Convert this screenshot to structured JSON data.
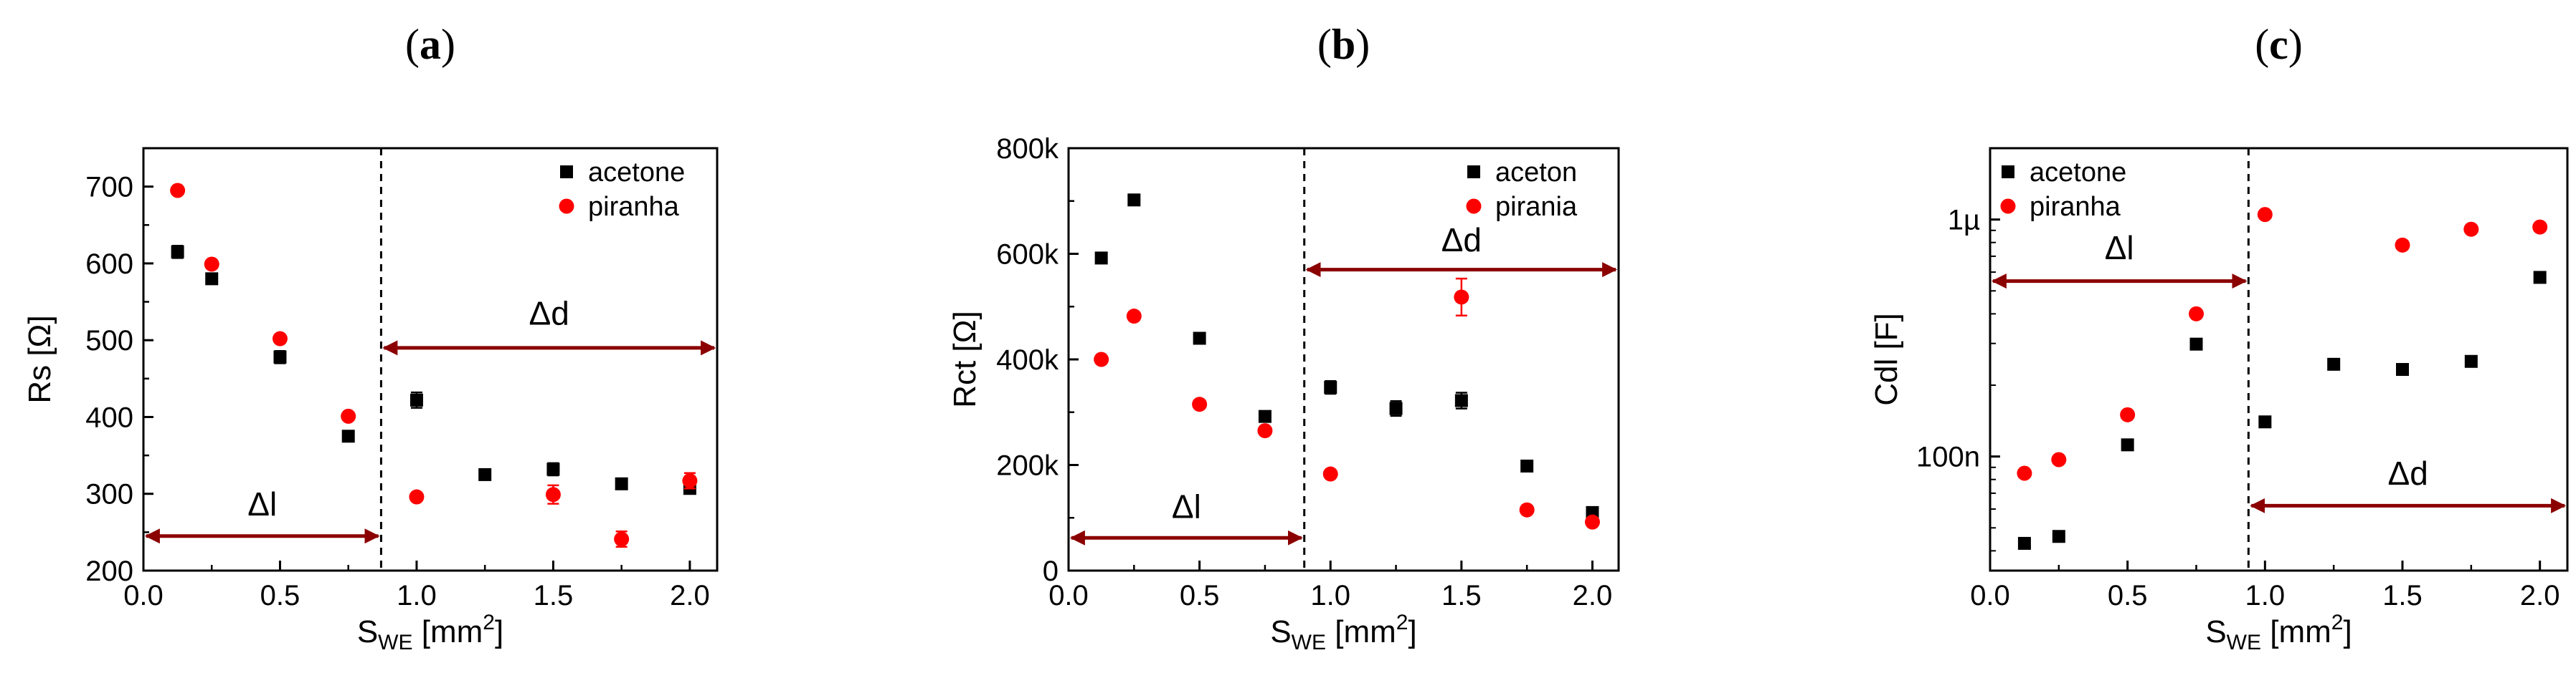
{
  "chart_data": [
    {
      "type": "scatter",
      "panel_label": "a",
      "xlabel": "S",
      "xlabel_sub": "WE",
      "xlabel_unit": " [mm",
      "xlabel_sup": "2",
      "xlabel_close": "]",
      "ylabel": "Rs [Ω]",
      "xlim": [
        0.0,
        2.1
      ],
      "ylim": [
        200,
        750
      ],
      "xticks": [
        0.0,
        0.5,
        1.0,
        1.5,
        2.0
      ],
      "xtick_labels": [
        "0.0",
        "0.5",
        "1.0",
        "1.5",
        "2.0"
      ],
      "yticks": [
        200,
        300,
        400,
        500,
        600,
        700
      ],
      "ytick_labels": [
        "200",
        "300",
        "400",
        "500",
        "600",
        "700"
      ],
      "y_scale": "linear",
      "legend_position": "top-right",
      "series": [
        {
          "name": "acetone",
          "marker": "square",
          "color": "#000000",
          "x": [
            0.125,
            0.25,
            0.5,
            0.75,
            1.0,
            1.25,
            1.5,
            1.75,
            2.0
          ],
          "y": [
            615,
            580,
            478,
            375,
            422,
            325,
            332,
            313,
            307
          ],
          "yerr": [
            8,
            6,
            8,
            5,
            10,
            6,
            8,
            4,
            6
          ]
        },
        {
          "name": "piranha",
          "marker": "circle",
          "color": "#ff0000",
          "x": [
            0.125,
            0.25,
            0.5,
            0.75,
            1.0,
            1.5,
            1.75,
            2.0
          ],
          "y": [
            695,
            599,
            502,
            401,
            296,
            299,
            241,
            317
          ],
          "yerr": [
            5,
            4,
            4,
            4,
            4,
            12,
            10,
            10
          ]
        }
      ],
      "vline_x": 0.87,
      "annotations": [
        {
          "text": "Δl",
          "x_from": 0.0,
          "x_to": 0.87,
          "y": 245,
          "label_y": 272
        },
        {
          "text": "Δd",
          "x_from": 0.87,
          "x_to": 2.1,
          "y": 490,
          "label_y": 520
        }
      ]
    },
    {
      "type": "scatter",
      "panel_label": "b",
      "xlabel": "S",
      "xlabel_sub": "WE",
      "xlabel_unit": " [mm",
      "xlabel_sup": "2",
      "xlabel_close": "]",
      "ylabel": "Rct [Ω]",
      "xlim": [
        0.0,
        2.1
      ],
      "ylim": [
        0,
        800000
      ],
      "xticks": [
        0.0,
        0.5,
        1.0,
        1.5,
        2.0
      ],
      "xtick_labels": [
        "0.0",
        "0.5",
        "1.0",
        "1.5",
        "2.0"
      ],
      "yticks": [
        0,
        200000,
        400000,
        600000,
        800000
      ],
      "ytick_labels": [
        "0",
        "200k",
        "400k",
        "600k",
        "800k"
      ],
      "y_scale": "linear",
      "legend_position": "top-right",
      "series": [
        {
          "name": "aceton",
          "marker": "square",
          "color": "#000000",
          "x": [
            0.125,
            0.25,
            0.5,
            0.75,
            1.0,
            1.25,
            1.5,
            1.75,
            2.0
          ],
          "y": [
            592000,
            702000,
            440000,
            292000,
            347000,
            307000,
            322000,
            198000,
            110000
          ],
          "yerr": [
            5000,
            6000,
            5000,
            8000,
            12000,
            14000,
            15000,
            5000,
            4000
          ]
        },
        {
          "name": "pirania",
          "marker": "circle",
          "color": "#ff0000",
          "x": [
            0.125,
            0.25,
            0.5,
            0.75,
            1.0,
            1.5,
            1.75,
            2.0
          ],
          "y": [
            400000,
            482000,
            315000,
            265000,
            183000,
            518000,
            115000,
            92000
          ],
          "yerr": [
            4000,
            5000,
            5000,
            6000,
            5000,
            35000,
            5000,
            5000
          ]
        }
      ],
      "vline_x": 0.9,
      "annotations": [
        {
          "text": "Δl",
          "x_from": 0.0,
          "x_to": 0.9,
          "y": 62000,
          "label_y": 100000
        },
        {
          "text": "Δd",
          "x_from": 0.9,
          "x_to": 2.1,
          "y": 570000,
          "label_y": 605000
        }
      ]
    },
    {
      "type": "scatter",
      "panel_label": "c",
      "xlabel": "S",
      "xlabel_sub": "WE",
      "xlabel_unit": " [mm",
      "xlabel_sup": "2",
      "xlabel_close": "]",
      "ylabel": "Cdl [F]",
      "xlim": [
        0.0,
        2.1
      ],
      "ylim": [
        3.3e-08,
        2e-06
      ],
      "xticks": [
        0.0,
        0.5,
        1.0,
        1.5,
        2.0
      ],
      "xtick_labels": [
        "0.0",
        "0.5",
        "1.0",
        "1.5",
        "2.0"
      ],
      "yticks": [
        1e-07,
        1e-06
      ],
      "ytick_labels": [
        "100n",
        "1µ"
      ],
      "y_scale": "log",
      "legend_position": "top-left",
      "series": [
        {
          "name": "acetone",
          "marker": "square",
          "color": "#000000",
          "x": [
            0.125,
            0.25,
            0.5,
            0.75,
            1.0,
            1.25,
            1.5,
            1.75,
            2.0
          ],
          "y": [
            4.3e-08,
            4.6e-08,
            1.12e-07,
            2.98e-07,
            1.4e-07,
            2.45e-07,
            2.33e-07,
            2.52e-07,
            5.7e-07
          ]
        },
        {
          "name": "piranha",
          "marker": "circle",
          "color": "#ff0000",
          "x": [
            0.125,
            0.25,
            0.5,
            0.75,
            1.0,
            1.5,
            1.75,
            2.0
          ],
          "y": [
            8.5e-08,
            9.7e-08,
            1.5e-07,
            4e-07,
            1.05e-06,
            7.8e-07,
            9.1e-07,
            9.3e-07
          ]
        }
      ],
      "vline_x": 0.94,
      "annotations": [
        {
          "text": "Δl",
          "x_from": 0.0,
          "x_to": 0.94,
          "y": 5.5e-07,
          "label_y": 6.8e-07
        },
        {
          "text": "Δd",
          "x_from": 0.94,
          "x_to": 2.1,
          "y": 6.2e-08,
          "label_y": 7.6e-08
        }
      ]
    }
  ]
}
